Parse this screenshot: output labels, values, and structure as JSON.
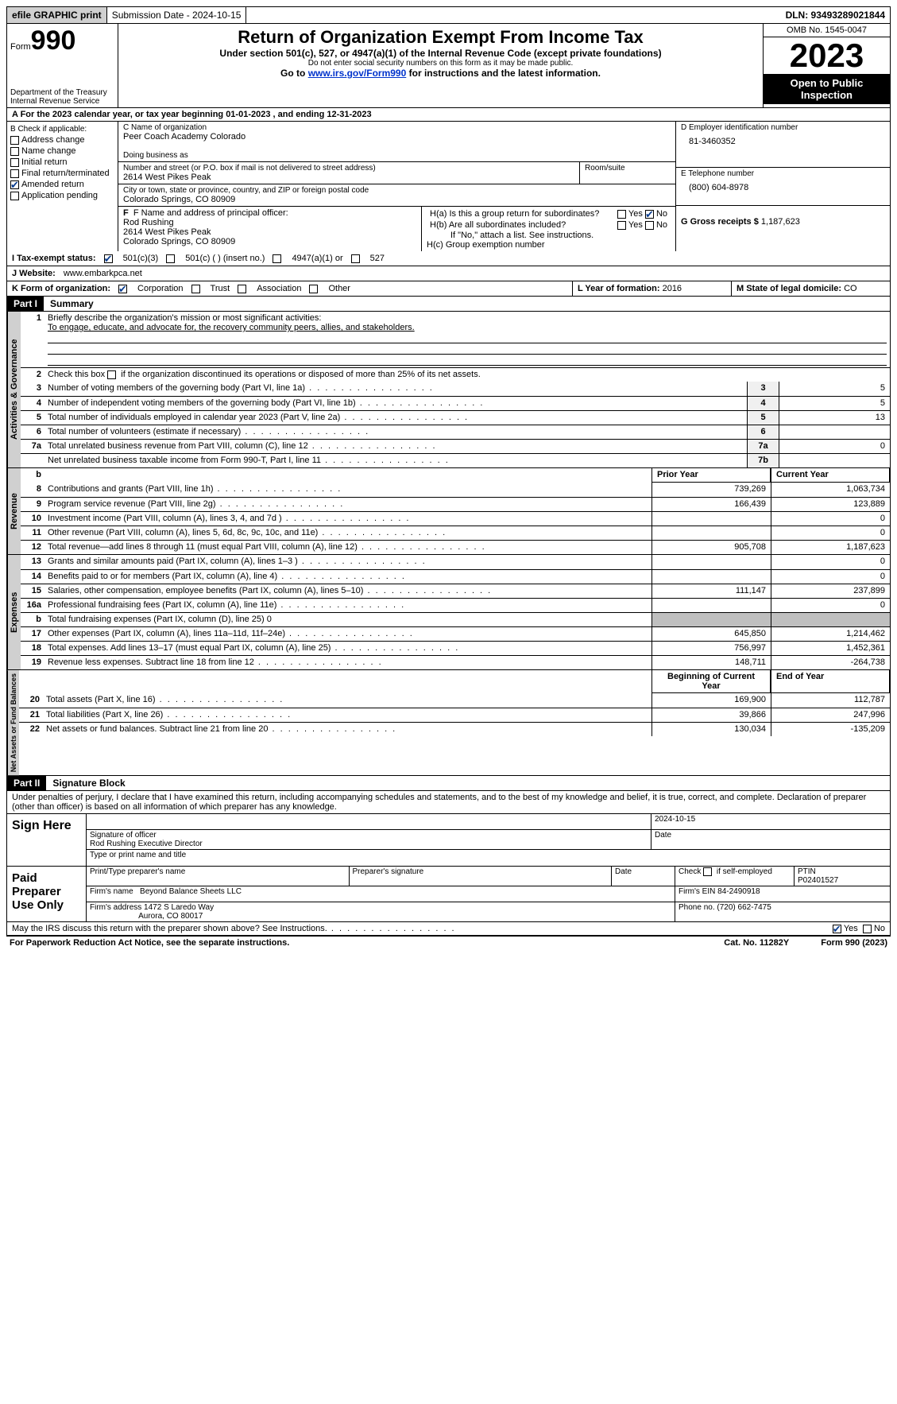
{
  "topbar": {
    "efile": "efile GRAPHIC print",
    "submission": "Submission Date - 2024-10-15",
    "dln": "DLN: 93493289021844"
  },
  "header": {
    "form_word": "Form",
    "form_num": "990",
    "dept": "Department of the Treasury",
    "irs": "Internal Revenue Service",
    "title": "Return of Organization Exempt From Income Tax",
    "subtitle": "Under section 501(c), 527, or 4947(a)(1) of the Internal Revenue Code (except private foundations)",
    "note1": "Do not enter social security numbers on this form as it may be made public.",
    "note2_pre": "Go to ",
    "note2_link": "www.irs.gov/Form990",
    "note2_post": " for instructions and the latest information.",
    "omb": "OMB No. 1545-0047",
    "year": "2023",
    "open": "Open to Public Inspection"
  },
  "row_a": "A For the 2023 calendar year, or tax year beginning 01-01-2023   , and ending 12-31-2023",
  "col_b": {
    "title": "B Check if applicable:",
    "items": [
      "Address change",
      "Name change",
      "Initial return",
      "Final return/terminated",
      "Amended return",
      "Application pending"
    ],
    "checked_idx": 4
  },
  "col_c": {
    "name_label": "C Name of organization",
    "name": "Peer Coach Academy Colorado",
    "dba_label": "Doing business as",
    "dba": "",
    "street_label": "Number and street (or P.O. box if mail is not delivered to street address)",
    "street": "2614 West Pikes Peak",
    "room_label": "Room/suite",
    "room": "",
    "city_label": "City or town, state or province, country, and ZIP or foreign postal code",
    "city": "Colorado Springs, CO  80909",
    "officer_label": "F  Name and address of principal officer:",
    "officer_name": "Rod Rushing",
    "officer_street": "2614 West Pikes Peak",
    "officer_city": "Colorado Springs, CO  80909"
  },
  "col_d": {
    "ein_label": "D Employer identification number",
    "ein": "81-3460352",
    "phone_label": "E Telephone number",
    "phone": "(800) 604-8978",
    "gross_label": "G Gross receipts $",
    "gross": "1,187,623",
    "ha_label": "H(a)  Is this a group return for subordinates?",
    "hb_label": "H(b)  Are all subordinates included?",
    "h_note": "If \"No,\" attach a list. See instructions.",
    "hc_label": "H(c)  Group exemption number",
    "yes": "Yes",
    "no": "No"
  },
  "tax_status": {
    "label_i": "I  Tax-exempt status:",
    "opt1": "501(c)(3)",
    "opt2": "501(c) (  ) (insert no.)",
    "opt3": "4947(a)(1) or",
    "opt4": "527",
    "label_j": "J  Website:",
    "website": "www.embarkpca.net"
  },
  "row_k": {
    "label": "K Form of organization:",
    "opts": [
      "Corporation",
      "Trust",
      "Association",
      "Other"
    ],
    "checked_idx": 0,
    "l_label": "L Year of formation:",
    "l_val": "2016",
    "m_label": "M State of legal domicile:",
    "m_val": "CO"
  },
  "part1": {
    "hdr": "Part I",
    "title": "Summary",
    "vtabs": [
      "Activities & Governance",
      "Revenue",
      "Expenses",
      "Net Assets or Fund Balances"
    ],
    "line1_label": "Briefly describe the organization's mission or most significant activities:",
    "line1_text": "To engage, educate, and advocate for, the recovery community peers, allies, and stakeholders.",
    "line2": "Check this box      if the organization discontinued its operations or disposed of more than 25% of its net assets.",
    "rows_gov": [
      {
        "n": "3",
        "d": "Number of voting members of the governing body (Part VI, line 1a)",
        "box": "3",
        "v": "5"
      },
      {
        "n": "4",
        "d": "Number of independent voting members of the governing body (Part VI, line 1b)",
        "box": "4",
        "v": "5"
      },
      {
        "n": "5",
        "d": "Total number of individuals employed in calendar year 2023 (Part V, line 2a)",
        "box": "5",
        "v": "13"
      },
      {
        "n": "6",
        "d": "Total number of volunteers (estimate if necessary)",
        "box": "6",
        "v": ""
      },
      {
        "n": "7a",
        "d": "Total unrelated business revenue from Part VIII, column (C), line 12",
        "box": "7a",
        "v": "0"
      },
      {
        "n": "",
        "d": "Net unrelated business taxable income from Form 990-T, Part I, line 11",
        "box": "7b",
        "v": ""
      }
    ],
    "col_prior": "Prior Year",
    "col_curr": "Current Year",
    "rows_rev": [
      {
        "n": "8",
        "d": "Contributions and grants (Part VIII, line 1h)",
        "p": "739,269",
        "c": "1,063,734"
      },
      {
        "n": "9",
        "d": "Program service revenue (Part VIII, line 2g)",
        "p": "166,439",
        "c": "123,889"
      },
      {
        "n": "10",
        "d": "Investment income (Part VIII, column (A), lines 3, 4, and 7d )",
        "p": "",
        "c": "0"
      },
      {
        "n": "11",
        "d": "Other revenue (Part VIII, column (A), lines 5, 6d, 8c, 9c, 10c, and 11e)",
        "p": "",
        "c": "0"
      },
      {
        "n": "12",
        "d": "Total revenue—add lines 8 through 11 (must equal Part VIII, column (A), line 12)",
        "p": "905,708",
        "c": "1,187,623"
      }
    ],
    "rows_exp": [
      {
        "n": "13",
        "d": "Grants and similar amounts paid (Part IX, column (A), lines 1–3 )",
        "p": "",
        "c": "0"
      },
      {
        "n": "14",
        "d": "Benefits paid to or for members (Part IX, column (A), line 4)",
        "p": "",
        "c": "0"
      },
      {
        "n": "15",
        "d": "Salaries, other compensation, employee benefits (Part IX, column (A), lines 5–10)",
        "p": "111,147",
        "c": "237,899"
      },
      {
        "n": "16a",
        "d": "Professional fundraising fees (Part IX, column (A), line 11e)",
        "p": "",
        "c": "0"
      },
      {
        "n": "b",
        "d": "Total fundraising expenses (Part IX, column (D), line 25) 0",
        "p": "SHADE",
        "c": "SHADE"
      },
      {
        "n": "17",
        "d": "Other expenses (Part IX, column (A), lines 11a–11d, 11f–24e)",
        "p": "645,850",
        "c": "1,214,462"
      },
      {
        "n": "18",
        "d": "Total expenses. Add lines 13–17 (must equal Part IX, column (A), line 25)",
        "p": "756,997",
        "c": "1,452,361"
      },
      {
        "n": "19",
        "d": "Revenue less expenses. Subtract line 18 from line 12",
        "p": "148,711",
        "c": "-264,738"
      }
    ],
    "col_begin": "Beginning of Current Year",
    "col_end": "End of Year",
    "rows_net": [
      {
        "n": "20",
        "d": "Total assets (Part X, line 16)",
        "p": "169,900",
        "c": "112,787"
      },
      {
        "n": "21",
        "d": "Total liabilities (Part X, line 26)",
        "p": "39,866",
        "c": "247,996"
      },
      {
        "n": "22",
        "d": "Net assets or fund balances. Subtract line 21 from line 20",
        "p": "130,034",
        "c": "-135,209"
      }
    ]
  },
  "part2": {
    "hdr": "Part II",
    "title": "Signature Block",
    "decl": "Under penalties of perjury, I declare that I have examined this return, including accompanying schedules and statements, and to the best of my knowledge and belief, it is true, correct, and complete. Declaration of preparer (other than officer) is based on all information of which preparer has any knowledge.",
    "sign_here": "Sign Here",
    "sig_officer_label": "Signature of officer",
    "sig_officer": "Rod Rushing Executive Director",
    "sig_type_label": "Type or print name and title",
    "sig_date_label": "Date",
    "sig_date": "2024-10-15",
    "paid": "Paid Preparer Use Only",
    "prep_name_label": "Print/Type preparer's name",
    "prep_sig_label": "Preparer's signature",
    "prep_date_label": "Date",
    "self_emp": "Check       if self-employed",
    "ptin_label": "PTIN",
    "ptin": "P02401527",
    "firm_name_label": "Firm's name",
    "firm_name": "Beyond Balance Sheets LLC",
    "firm_ein_label": "Firm's EIN",
    "firm_ein": "84-2490918",
    "firm_addr_label": "Firm's address",
    "firm_addr1": "1472 S Laredo Way",
    "firm_addr2": "Aurora, CO  80017",
    "firm_phone_label": "Phone no.",
    "firm_phone": "(720) 662-7475",
    "discuss": "May the IRS discuss this return with the preparer shown above? See Instructions.",
    "yes": "Yes",
    "no": "No"
  },
  "footer": {
    "left": "For Paperwork Reduction Act Notice, see the separate instructions.",
    "mid": "Cat. No. 11282Y",
    "right": "Form 990 (2023)"
  }
}
